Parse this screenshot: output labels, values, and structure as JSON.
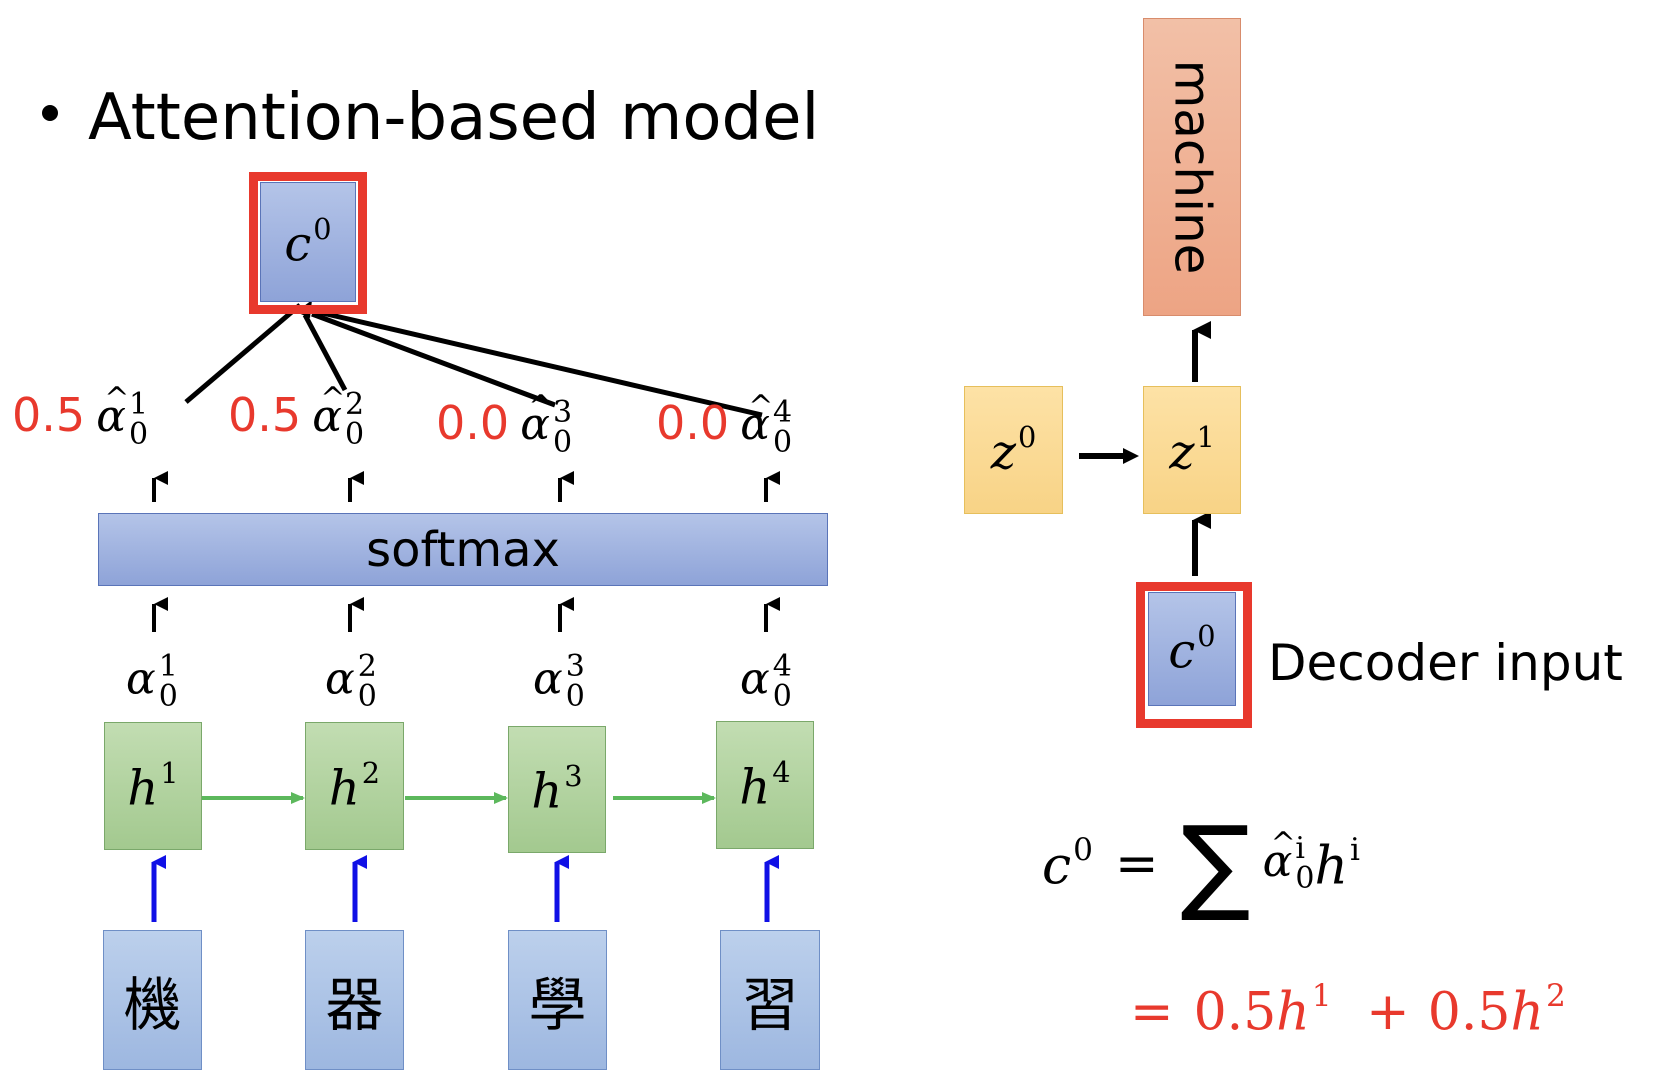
{
  "heading": "Attention-based model",
  "context_vector": {
    "symbol": "c",
    "index": "0"
  },
  "hat_weights": [
    {
      "value": "0.5",
      "symbol": "α",
      "sup": "1",
      "sub": "0"
    },
    {
      "value": "0.5",
      "symbol": "α",
      "sup": "2",
      "sub": "0"
    },
    {
      "value": "0.0",
      "symbol": "α",
      "sup": "3",
      "sub": "0"
    },
    {
      "value": "0.0",
      "symbol": "α",
      "sup": "4",
      "sub": "0"
    }
  ],
  "softmax_label": "softmax",
  "raw_weights": [
    {
      "symbol": "α",
      "sup": "1",
      "sub": "0"
    },
    {
      "symbol": "α",
      "sup": "2",
      "sub": "0"
    },
    {
      "symbol": "α",
      "sup": "3",
      "sub": "0"
    },
    {
      "symbol": "α",
      "sup": "4",
      "sub": "0"
    }
  ],
  "hidden_states": [
    {
      "symbol": "h",
      "index": "1"
    },
    {
      "symbol": "h",
      "index": "2"
    },
    {
      "symbol": "h",
      "index": "3"
    },
    {
      "symbol": "h",
      "index": "4"
    }
  ],
  "inputs": [
    "機",
    "器",
    "學",
    "習"
  ],
  "decoder": {
    "output_word": "machine",
    "z0": {
      "symbol": "z",
      "index": "0"
    },
    "z1": {
      "symbol": "z",
      "index": "1"
    },
    "input_symbol": {
      "symbol": "c",
      "index": "0"
    },
    "input_label": "Decoder input"
  },
  "equation": {
    "lhs_symbol": "c",
    "lhs_index": "0",
    "equals": "=",
    "sum": "∑",
    "term_symbol": "α",
    "term_sup": "i",
    "term_sub": "0",
    "h_symbol": "h",
    "h_sup": "i",
    "line2": {
      "equals": "=",
      "coef1": "0.5",
      "h1": "h",
      "h1_sup": "1",
      "plus": "+",
      "coef2": "0.5",
      "h2": "h",
      "h2_sup": "2"
    }
  },
  "colors": {
    "highlight": "#e8392d",
    "encoder_arrow": "#5cb85c",
    "input_arrow": "#1010e6"
  }
}
